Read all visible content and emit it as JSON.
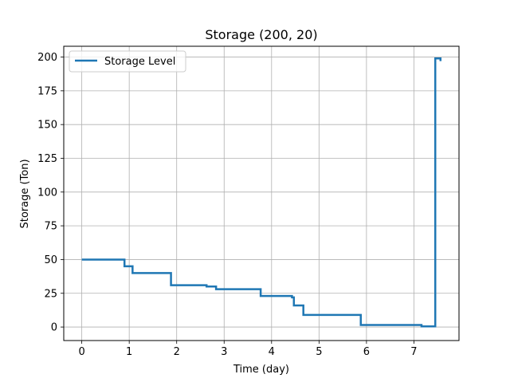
{
  "chart_data": {
    "type": "line",
    "title": "Storage (200, 20)",
    "xlabel": "Time (day)",
    "ylabel": "Storage (Ton)",
    "xlim": [
      -0.38,
      7.95
    ],
    "ylim": [
      -10,
      208
    ],
    "xticks": [
      0,
      1,
      2,
      3,
      4,
      5,
      6,
      7
    ],
    "yticks": [
      0,
      25,
      50,
      75,
      100,
      125,
      150,
      175,
      200
    ],
    "grid": true,
    "legend_position": "upper-left",
    "series": [
      {
        "name": "Storage Level",
        "color": "#1f77b4",
        "step": true,
        "x": [
          0,
          0.9,
          1.07,
          1.88,
          2.63,
          2.83,
          3.77,
          4.43,
          4.47,
          4.67,
          5.53,
          5.88,
          7.1,
          7.16,
          7.45,
          7.51,
          7.56
        ],
        "y": [
          50,
          45,
          40,
          31,
          30,
          28,
          23,
          22,
          16,
          9,
          9,
          1.5,
          1.5,
          0.5,
          199,
          199,
          197
        ]
      }
    ]
  }
}
